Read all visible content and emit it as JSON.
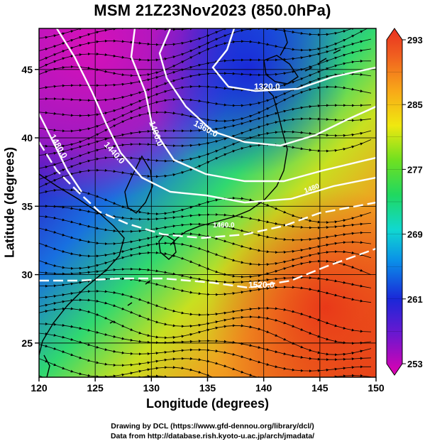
{
  "title": "MSM 21Z23Nov2023 (850.0hPa)",
  "axes": {
    "xlabel": "Longitude (degrees)",
    "ylabel": "Latitude  (degrees)",
    "xlim": [
      120,
      150
    ],
    "ylim": [
      22.5,
      48
    ],
    "xticks": [
      "120",
      "125",
      "130",
      "135",
      "140",
      "145",
      "150"
    ],
    "yticks": [
      "25",
      "30",
      "35",
      "40",
      "45"
    ],
    "grid": true
  },
  "colorbar": {
    "range": [
      253,
      293
    ],
    "tick_labels": [
      "293",
      "285",
      "277",
      "269",
      "261",
      "253"
    ]
  },
  "contour_labels": [
    {
      "text": "1320.0"
    },
    {
      "text": "1360.0"
    },
    {
      "text": "1400.0"
    },
    {
      "text": "1440.0"
    },
    {
      "text": "1480.0"
    },
    {
      "text": "1460.0"
    },
    {
      "text": "1480"
    },
    {
      "text": "1520.0"
    }
  ],
  "credits": {
    "line1": "Drawing by DCL (https://www.gfd-dennou.org/library/dcl/)",
    "line2": "Data from http://database.rish.kyoto-u.ac.jp/arch/jmadata/"
  }
}
